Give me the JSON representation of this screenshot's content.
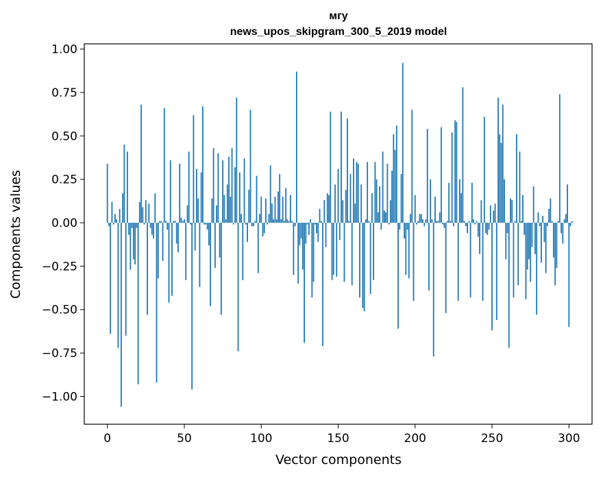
{
  "chart_data": {
    "type": "bar",
    "title_line1": "мгу",
    "title_line2": "news_upos_skipgram_300_5_2019 model",
    "xlabel": "Vector components",
    "ylabel": "Components values",
    "xlim": [
      -15,
      315
    ],
    "ylim": [
      -1.16,
      1.03
    ],
    "xticks": [
      0,
      50,
      100,
      150,
      200,
      250,
      300
    ],
    "xtick_labels": [
      "0",
      "50",
      "100",
      "150",
      "200",
      "250",
      "300"
    ],
    "yticks": [
      1.0,
      0.75,
      0.5,
      0.25,
      0.0,
      -0.25,
      -0.5,
      -0.75,
      -1.0
    ],
    "ytick_labels": [
      "1.00",
      "0.75",
      "0.50",
      "0.25",
      "0.00",
      "−0.25",
      "−0.50",
      "−0.75",
      "−1.00"
    ],
    "bar_color": "#1f77b4",
    "values": [
      0.34,
      -0.02,
      -0.64,
      0.12,
      -0.01,
      0.05,
      0.02,
      -0.72,
      0.08,
      -1.06,
      0.17,
      0.45,
      -0.65,
      0.41,
      -0.07,
      -0.27,
      -0.03,
      -0.21,
      -0.24,
      -0.03,
      -0.93,
      0.12,
      0.68,
      0.09,
      -0.01,
      0.13,
      -0.53,
      0.11,
      -0.03,
      -0.07,
      -0.09,
      0.17,
      -0.92,
      -0.32,
      0.01,
      0.01,
      -0.22,
      0.66,
      0.01,
      -0.04,
      -0.46,
      0.36,
      -0.42,
      0.01,
      0.01,
      -0.12,
      -0.17,
      0.34,
      0.03,
      0.01,
      0.02,
      -0.33,
      0.1,
      0.41,
      -0.01,
      -0.96,
      0.62,
      -0.16,
      0.31,
      0.14,
      -0.37,
      0.29,
      0.67,
      -0.01,
      -0.01,
      -0.04,
      -0.13,
      -0.48,
      0.14,
      0.43,
      -0.26,
      0.1,
      0.4,
      -0.2,
      -0.53,
      0.36,
      0.16,
      0.02,
      0.22,
      0.38,
      0.15,
      0.43,
      -0.01,
      0.32,
      0.72,
      -0.74,
      0.29,
      0.05,
      -0.33,
      0.37,
      -0.01,
      -0.11,
      0.19,
      0.65,
      -0.02,
      -0.02,
      0.01,
      0.27,
      -0.29,
      0.05,
      0.15,
      -0.08,
      -0.06,
      0.14,
      -0.01,
      0.05,
      0.33,
      0.11,
      0.02,
      0.15,
      0.02,
      0.18,
      0.28,
      0.02,
      0.15,
      0.01,
      0.2,
      0.02,
      0.01,
      0.16,
      0.01,
      -0.3,
      -0.02,
      0.87,
      -0.35,
      -0.13,
      -0.09,
      -0.27,
      -0.69,
      -0.12,
      -0.01,
      -0.07,
      0.02,
      -0.43,
      -0.34,
      -0.01,
      -0.06,
      -0.11,
      0.08,
      0.01,
      -0.71,
      0.13,
      -0.14,
      0.17,
      0.16,
      0.64,
      -0.33,
      -0.3,
      0.22,
      -0.31,
      0.31,
      -0.1,
      0.64,
      0.13,
      -0.34,
      0.19,
      0.6,
      0.01,
      0.28,
      -0.36,
      0.37,
      0.11,
      0.35,
      0.34,
      -0.43,
      0.22,
      -0.49,
      -0.51,
      0.02,
      0.35,
      0.01,
      -0.41,
      0.17,
      -0.33,
      0.35,
      0.25,
      0.06,
      0.21,
      -0.04,
      0.41,
      0.07,
      0.06,
      0.34,
      -0.01,
      0.13,
      0.3,
      0.51,
      0.42,
      0.56,
      -0.61,
      -0.04,
      0.28,
      0.92,
      -0.09,
      -0.3,
      -0.04,
      -0.32,
      0.05,
      0.65,
      -0.45,
      0.16,
      -0.01,
      0.01,
      0.05,
      0.05,
      0.02,
      -0.02,
      0.02,
      0.54,
      -0.39,
      0.25,
      0.02,
      -0.77,
      0.15,
      0.01,
      0.01,
      0.06,
      0.55,
      -0.01,
      -0.03,
      -0.52,
      0.01,
      0.23,
      0.01,
      0.52,
      -0.02,
      0.59,
      0.58,
      -0.45,
      0.25,
      0.17,
      0.78,
      0.01,
      -0.02,
      -0.06,
      0.01,
      -0.43,
      0.23,
      0.02,
      -0.01,
      0.01,
      -0.08,
      -0.18,
      0.13,
      -0.45,
      0.61,
      -0.06,
      -0.07,
      -0.04,
      0.1,
      -0.62,
      0.07,
      0.11,
      -0.56,
      0.72,
      0.51,
      0.46,
      0.68,
      0.25,
      -0.21,
      -0.06,
      -0.72,
      0.14,
      0.13,
      -0.43,
      0.01,
      0.51,
      -0.36,
      0.41,
      0.01,
      0.16,
      -0.07,
      -0.44,
      -0.27,
      -0.21,
      -0.34,
      -0.14,
      0.21,
      -0.18,
      -0.53,
      0.06,
      -0.02,
      -0.23,
      0.04,
      -0.11,
      -0.29,
      -0.02,
      0.08,
      0.14,
      0.01,
      -0.2,
      -0.36,
      -0.26,
      0.01,
      0.74,
      -0.06,
      -0.12,
      0.02,
      0.05,
      0.22,
      -0.6,
      -0.02,
      0.01
    ]
  }
}
